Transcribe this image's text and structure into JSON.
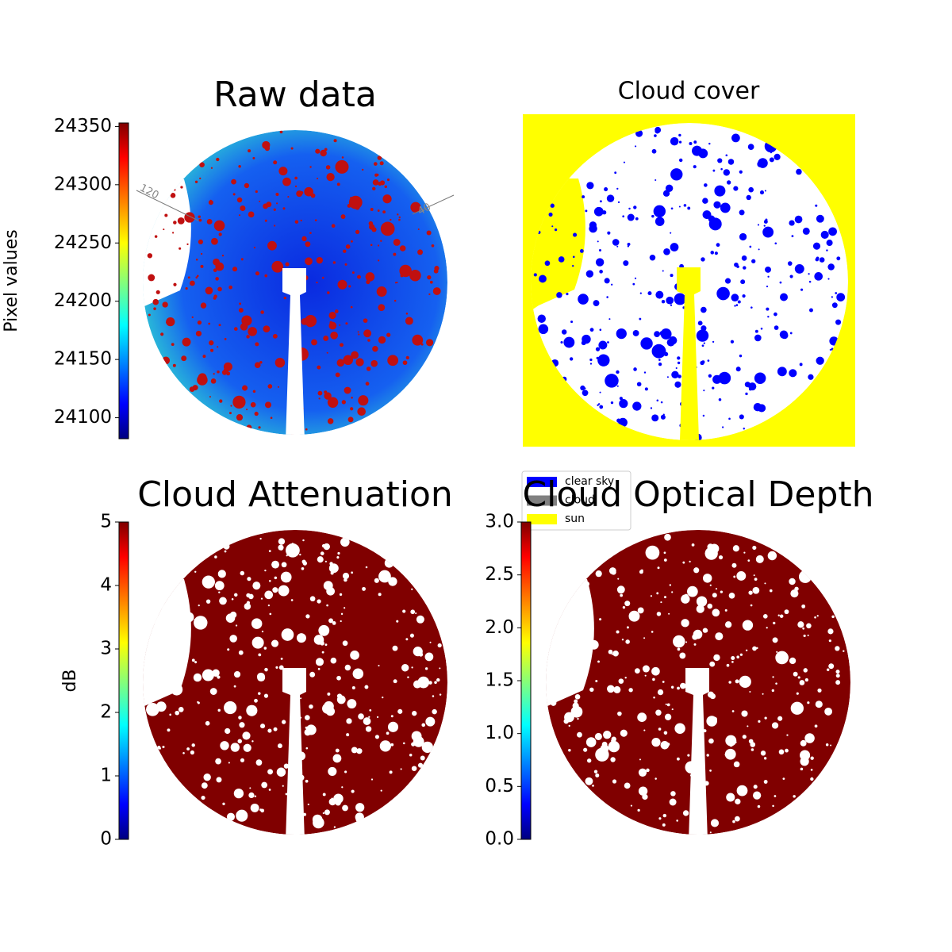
{
  "chart_data": [
    {
      "type": "image",
      "title": "Raw data",
      "annotations": [
        "120",
        "40"
      ],
      "colorbar": {
        "label": "Pixel values",
        "colormap": "jet",
        "lim": [
          24082,
          24353
        ],
        "ticks": [
          24100,
          24150,
          24200,
          24250,
          24300,
          24350
        ]
      }
    },
    {
      "type": "image",
      "title": "Cloud cover",
      "legend": [
        {
          "name": "clear sky",
          "color": "#0000ff"
        },
        {
          "name": "cloud",
          "color": "#808080"
        },
        {
          "name": "sun",
          "color": "#ffff00"
        }
      ]
    },
    {
      "type": "image",
      "title": "Cloud Attenuation",
      "colorbar": {
        "label": "dB",
        "colormap": "jet",
        "lim": [
          0,
          5
        ],
        "ticks": [
          0,
          1,
          2,
          3,
          4,
          5
        ]
      }
    },
    {
      "type": "image",
      "title": "Cloud Optical Depth",
      "colorbar": {
        "colormap": "jet",
        "lim": [
          0,
          3
        ],
        "ticks": [
          {
            "value": 0,
            "label": "0.0"
          },
          0.5,
          {
            "value": 1,
            "label": "1.0"
          },
          1.5,
          {
            "value": 2,
            "label": "2.0"
          },
          2.5,
          {
            "value": 3,
            "label": "3.0"
          }
        ]
      }
    }
  ]
}
